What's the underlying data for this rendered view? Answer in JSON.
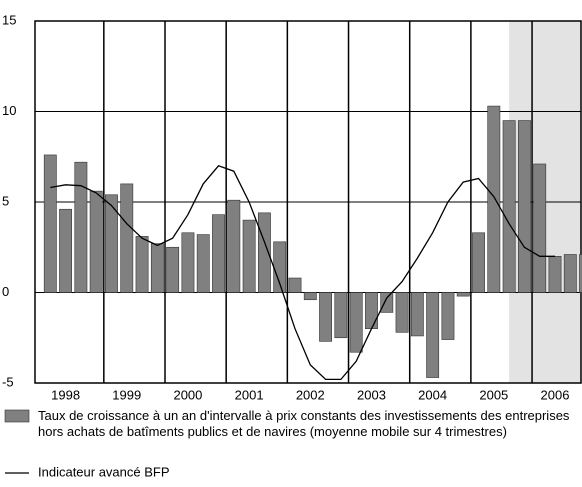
{
  "chart_data": {
    "type": "bar",
    "x": [
      1998,
      1998.25,
      1998.5,
      1998.75,
      1999,
      1999.25,
      1999.5,
      1999.75,
      2000,
      2000.25,
      2000.5,
      2000.75,
      2001,
      2001.25,
      2001.5,
      2001.75,
      2002,
      2002.25,
      2002.5,
      2002.75,
      2003,
      2003.25,
      2003.5,
      2003.75,
      2004,
      2004.25,
      2004.5,
      2004.75,
      2005,
      2005.25,
      2005.5,
      2005.75,
      2006,
      2006.25,
      2006.5,
      2006.75
    ],
    "series": [
      {
        "name": "Taux de croissance à un an d'intervalle à prix constants des investissements des entreprises hors achats de batîments publics et de navires (moyenne mobile sur 4 trimestres)",
        "color": "#808080",
        "values": [
          7.6,
          4.6,
          7.2,
          5.6,
          5.4,
          6.0,
          3.1,
          2.7,
          2.5,
          3.3,
          3.2,
          4.3,
          5.1,
          4.0,
          4.4,
          2.8,
          0.8,
          -0.4,
          -2.7,
          -2.5,
          -3.3,
          -2.0,
          -1.1,
          -2.2,
          -2.4,
          -4.7,
          -2.6,
          -0.2,
          3.3,
          10.3,
          9.5,
          9.5,
          7.1,
          2.0,
          2.1,
          2.1
        ]
      },
      {
        "name": "Indicateur avancé BFP",
        "color": "#000000",
        "type": "line",
        "values": [
          5.8,
          5.95,
          5.9,
          5.5,
          4.8,
          3.8,
          3.0,
          2.6,
          3.0,
          4.3,
          6.0,
          7.0,
          6.7,
          5.0,
          2.8,
          0.5,
          -2.0,
          -4.0,
          -4.8,
          -4.8,
          -3.8,
          -2.0,
          -0.3,
          0.6,
          1.9,
          3.3,
          5.0,
          6.1,
          6.3,
          5.3,
          3.8,
          2.5,
          2.0,
          2.0,
          null,
          null
        ]
      }
    ],
    "xlim": [
      1997.875,
      2006.8
    ],
    "xgrid": [
      1999,
      2000,
      2001,
      2002,
      2003,
      2004,
      2005,
      2006
    ],
    "xticks": [
      {
        "value": 1998.375,
        "label": "1998"
      },
      {
        "value": 1999.375,
        "label": "1999"
      },
      {
        "value": 2000.375,
        "label": "2000"
      },
      {
        "value": 2001.375,
        "label": "2001"
      },
      {
        "value": 2002.375,
        "label": "2002"
      },
      {
        "value": 2003.375,
        "label": "2003"
      },
      {
        "value": 2004.375,
        "label": "2004"
      },
      {
        "value": 2005.375,
        "label": "2005"
      },
      {
        "value": 2006.375,
        "label": "2006"
      }
    ],
    "ylim": [
      -5,
      15
    ],
    "yticks": [
      -5,
      0,
      5,
      10,
      15
    ],
    "grid": true,
    "shaded_from": 2005.625,
    "shade_color": "#e3e3e3"
  }
}
